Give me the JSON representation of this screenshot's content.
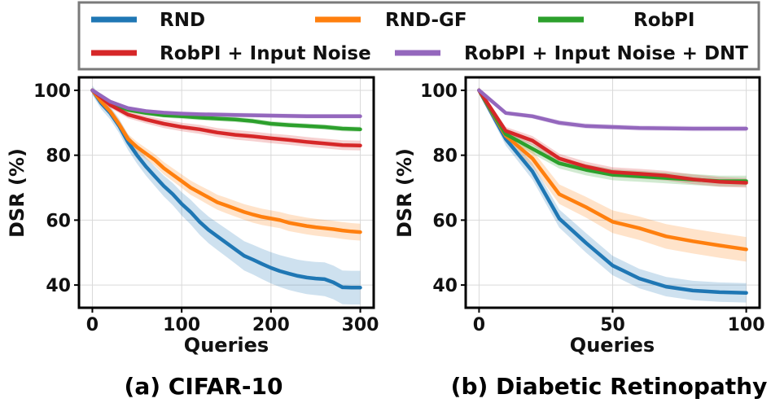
{
  "legend": {
    "items": [
      {
        "name": "RND",
        "color": "#1f77b4"
      },
      {
        "name": "RND-GF",
        "color": "#ff7f0e"
      },
      {
        "name": "RobPI",
        "color": "#2ca02c"
      },
      {
        "name": "RobPI + Input Noise",
        "color": "#d62728"
      },
      {
        "name": "RobPI + Input Noise + DNT",
        "color": "#9467bd"
      }
    ]
  },
  "chart_data": [
    {
      "type": "line",
      "title": "(a) CIFAR-10",
      "xlabel": "Queries",
      "ylabel": "DSR (%)",
      "xlim": [
        -15,
        315
      ],
      "ylim": [
        33,
        104
      ],
      "xticks": [
        0,
        100,
        200,
        300
      ],
      "yticks": [
        40,
        60,
        80,
        100
      ],
      "grid": true,
      "series": [
        {
          "name": "RND",
          "color": "#1f77b4",
          "x": [
            0,
            10,
            20,
            30,
            40,
            50,
            60,
            70,
            80,
            90,
            100,
            110,
            120,
            130,
            140,
            150,
            160,
            170,
            180,
            190,
            200,
            210,
            220,
            230,
            240,
            250,
            260,
            270,
            280,
            290,
            300
          ],
          "y": [
            100,
            96,
            93,
            89,
            84,
            80,
            76.5,
            73.5,
            70.5,
            68,
            65,
            62.5,
            59.5,
            57,
            55,
            53,
            51,
            49,
            47.8,
            46.5,
            45.3,
            44.3,
            43.5,
            42.8,
            42.3,
            42,
            41.8,
            40.8,
            39.3,
            39.2,
            39.2
          ],
          "band": [
            1.5,
            1.8,
            2.0,
            2.2,
            2.4,
            2.6,
            2.8,
            3.0,
            3.2,
            3.4,
            3.6,
            3.8,
            4.0,
            4.1,
            4.2,
            4.3,
            4.4,
            4.5,
            4.6,
            4.7,
            4.8,
            4.9,
            5.0,
            5.0,
            5.1,
            5.1,
            5.2,
            5.2,
            5.2,
            5.2,
            5.2
          ]
        },
        {
          "name": "RND-GF",
          "color": "#ff7f0e",
          "x": [
            0,
            10,
            20,
            30,
            40,
            50,
            60,
            70,
            80,
            90,
            100,
            110,
            120,
            130,
            140,
            150,
            160,
            170,
            180,
            190,
            200,
            210,
            220,
            230,
            240,
            250,
            260,
            270,
            280,
            290,
            300
          ],
          "y": [
            100,
            96.5,
            93.5,
            89.5,
            85,
            82.5,
            80.5,
            78.5,
            76,
            74,
            72,
            70,
            68.5,
            67,
            65.5,
            64.5,
            63.5,
            62.5,
            61.7,
            61,
            60.5,
            60,
            59.2,
            58.7,
            58.2,
            57.8,
            57.5,
            57.2,
            56.8,
            56.5,
            56.3
          ],
          "band": [
            0.8,
            1.0,
            1.2,
            1.4,
            1.5,
            1.6,
            1.7,
            1.8,
            1.9,
            2.0,
            2.1,
            2.2,
            2.2,
            2.3,
            2.3,
            2.4,
            2.4,
            2.4,
            2.5,
            2.5,
            2.5,
            2.5,
            2.6,
            2.6,
            2.6,
            2.6,
            2.6,
            2.6,
            2.6,
            2.6,
            2.6
          ]
        },
        {
          "name": "RobPI",
          "color": "#2ca02c",
          "x": [
            0,
            20,
            40,
            60,
            80,
            100,
            120,
            140,
            160,
            180,
            200,
            220,
            240,
            260,
            280,
            300
          ],
          "y": [
            100,
            96,
            94,
            93,
            92.3,
            92,
            91.6,
            91.3,
            91,
            90.5,
            89.7,
            89.3,
            89,
            88.7,
            88.2,
            88
          ],
          "band": [
            0.4,
            0.6,
            0.7,
            0.7,
            0.7,
            0.8,
            0.8,
            0.8,
            0.8,
            0.8,
            0.8,
            0.8,
            0.8,
            0.8,
            0.8,
            0.8
          ]
        },
        {
          "name": "RobPI + Input Noise",
          "color": "#d62728",
          "x": [
            0,
            20,
            40,
            60,
            80,
            100,
            120,
            140,
            160,
            180,
            200,
            220,
            240,
            260,
            280,
            300
          ],
          "y": [
            100,
            95.5,
            92.5,
            91,
            89.7,
            88.7,
            88,
            87,
            86.3,
            85.8,
            85.2,
            84.7,
            84.1,
            83.6,
            83.1,
            83
          ],
          "band": [
            0.6,
            0.9,
            1.1,
            1.2,
            1.3,
            1.3,
            1.4,
            1.4,
            1.5,
            1.5,
            1.5,
            1.5,
            1.5,
            1.5,
            1.5,
            1.5
          ]
        },
        {
          "name": "RobPI + Input Noise + DNT",
          "color": "#9467bd",
          "x": [
            0,
            20,
            40,
            60,
            80,
            100,
            120,
            140,
            160,
            180,
            200,
            220,
            240,
            260,
            280,
            300
          ],
          "y": [
            100,
            96.5,
            94.5,
            93.6,
            93.1,
            92.8,
            92.6,
            92.5,
            92.4,
            92.3,
            92.2,
            92.1,
            92,
            92,
            92,
            92
          ],
          "band": [
            0.3,
            0.5,
            0.6,
            0.6,
            0.6,
            0.7,
            0.7,
            0.7,
            0.7,
            0.7,
            0.7,
            0.7,
            0.7,
            0.7,
            0.7,
            0.7
          ]
        }
      ]
    },
    {
      "type": "line",
      "title": "(b) Diabetic Retinopathy",
      "xlabel": "Queries",
      "ylabel": "DSR (%)",
      "xlim": [
        -5,
        105
      ],
      "ylim": [
        33,
        104
      ],
      "xticks": [
        0,
        50,
        100
      ],
      "yticks": [
        40,
        60,
        80,
        100
      ],
      "grid": true,
      "series": [
        {
          "name": "RND",
          "color": "#1f77b4",
          "x": [
            0,
            10,
            20,
            30,
            40,
            50,
            60,
            70,
            80,
            90,
            100
          ],
          "y": [
            100,
            85,
            75,
            60.5,
            53,
            46,
            42,
            39.5,
            38.3,
            37.8,
            37.6
          ],
          "band": [
            1.0,
            2.0,
            2.5,
            2.8,
            3.0,
            3.0,
            3.0,
            3.0,
            3.0,
            3.0,
            3.0
          ]
        },
        {
          "name": "RND-GF",
          "color": "#ff7f0e",
          "x": [
            0,
            10,
            20,
            30,
            40,
            50,
            60,
            70,
            80,
            90,
            100
          ],
          "y": [
            100,
            86,
            79,
            68,
            64,
            59.5,
            57.5,
            55,
            53.5,
            52.2,
            51
          ],
          "band": [
            1.0,
            2.0,
            2.5,
            3.0,
            3.2,
            3.5,
            3.6,
            3.8,
            3.8,
            3.8,
            3.8
          ]
        },
        {
          "name": "RobPI",
          "color": "#2ca02c",
          "x": [
            0,
            10,
            20,
            30,
            40,
            50,
            60,
            70,
            80,
            90,
            100
          ],
          "y": [
            100,
            86.5,
            82,
            77.5,
            75.5,
            74,
            73.5,
            73,
            72.5,
            72,
            72
          ],
          "band": [
            0.8,
            1.2,
            1.5,
            1.6,
            1.7,
            1.7,
            1.7,
            1.7,
            1.7,
            1.7,
            1.7
          ]
        },
        {
          "name": "RobPI + Input Noise",
          "color": "#d62728",
          "x": [
            0,
            10,
            20,
            30,
            40,
            50,
            60,
            70,
            80,
            90,
            100
          ],
          "y": [
            100,
            87.5,
            84.5,
            79,
            76.5,
            74.8,
            74.3,
            73.7,
            72.6,
            71.8,
            71.5
          ],
          "band": [
            0.8,
            1.2,
            1.4,
            1.5,
            1.5,
            1.5,
            1.5,
            1.5,
            1.5,
            1.5,
            1.5
          ]
        },
        {
          "name": "RobPI + Input Noise + DNT",
          "color": "#9467bd",
          "x": [
            0,
            10,
            20,
            30,
            40,
            50,
            60,
            70,
            80,
            90,
            100
          ],
          "y": [
            100,
            93,
            92,
            90,
            89,
            88.7,
            88.4,
            88.3,
            88.2,
            88.2,
            88.2
          ],
          "band": [
            0.4,
            0.6,
            0.7,
            0.8,
            0.8,
            0.8,
            0.8,
            0.8,
            0.8,
            0.8,
            0.8
          ]
        }
      ]
    }
  ]
}
